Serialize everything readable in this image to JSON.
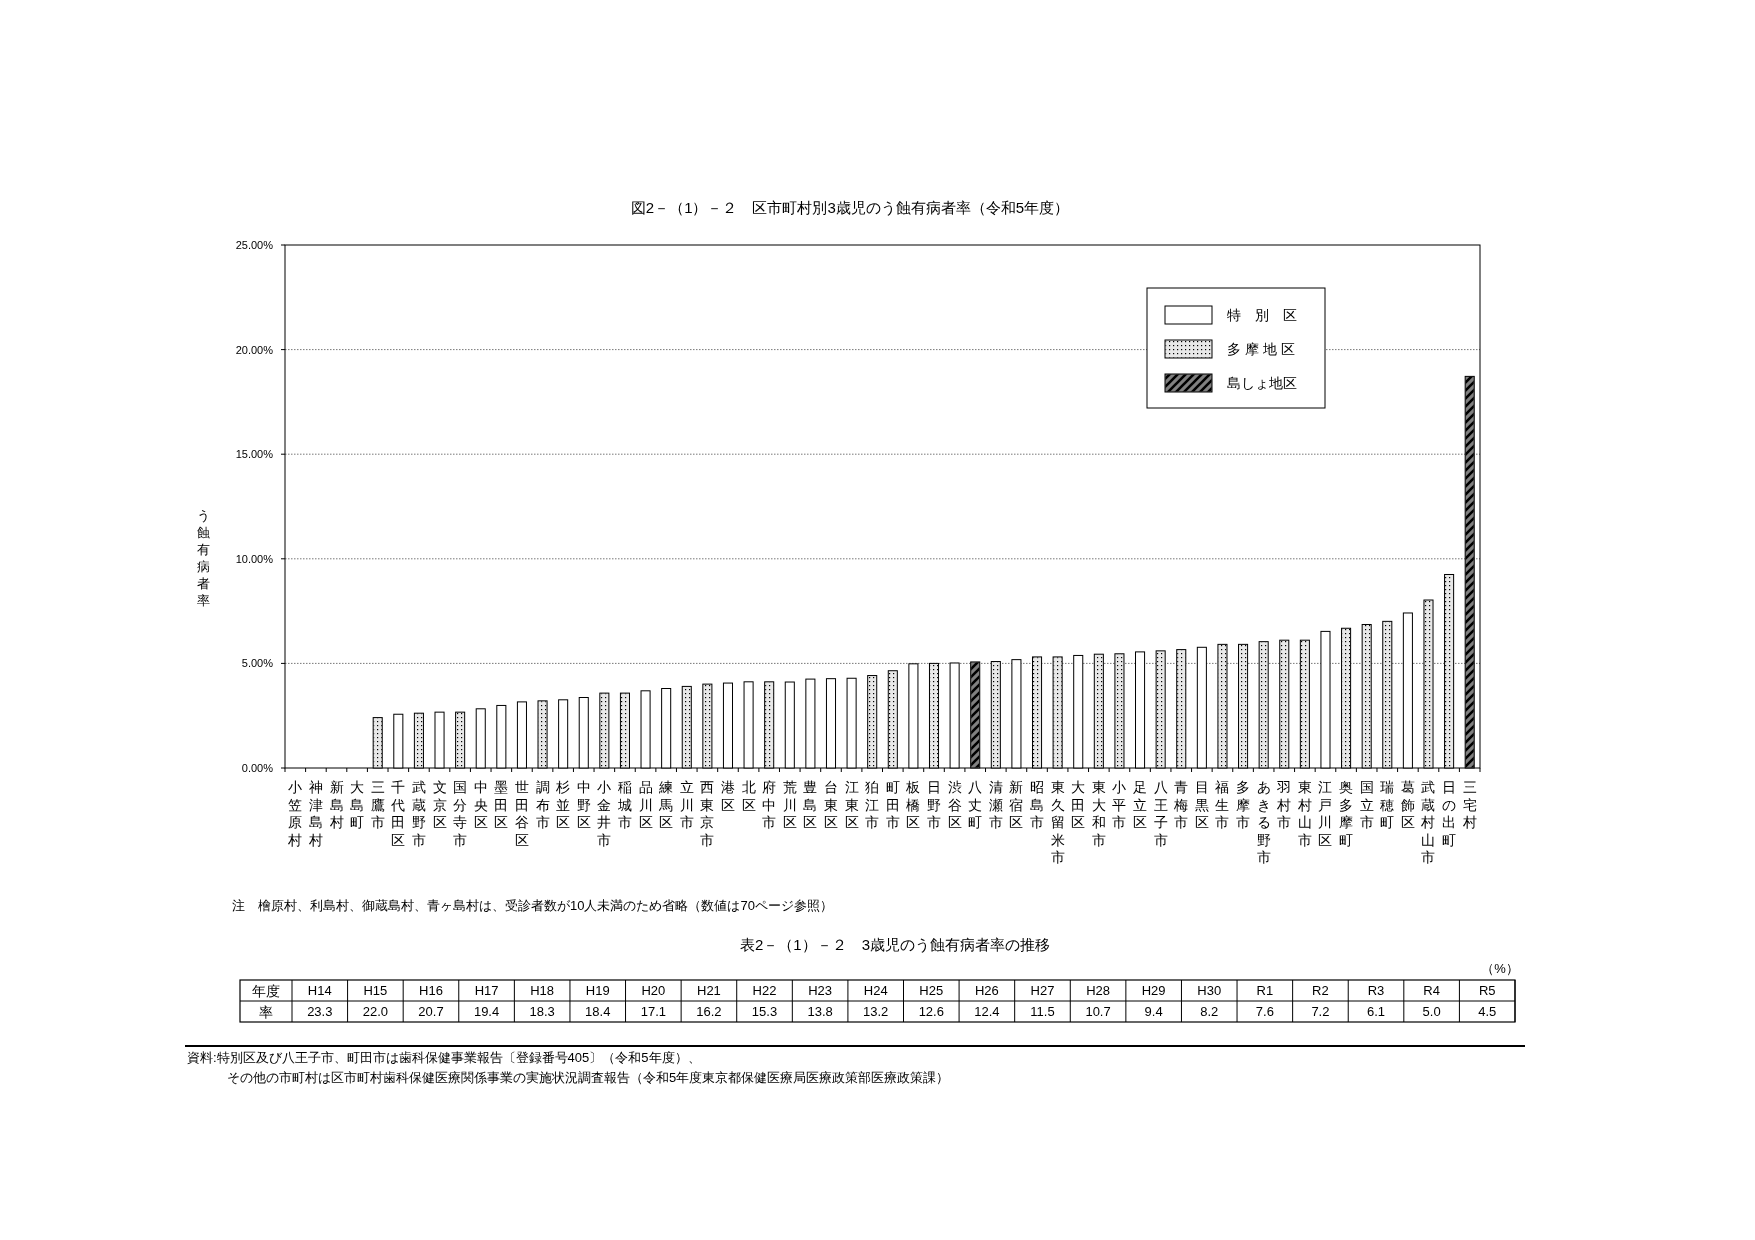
{
  "chart_data": [
    {
      "type": "bar",
      "stacked": true,
      "title": "図2－（1）－２　区市町村別3歳児のう蝕有病者率（令和5年度）",
      "ylabel": "う蝕有病者率",
      "categories": [
        "小笠原村",
        "神津島村",
        "新島村",
        "大島町",
        "三鷹市",
        "千代田区",
        "武蔵野市",
        "文京区",
        "国分寺市",
        "中央区",
        "墨田区",
        "世田谷区",
        "調布市",
        "杉並区",
        "中野区",
        "小金井市",
        "稲城市",
        "品川区",
        "練馬区",
        "立川市",
        "西東京市",
        "港区",
        "北区",
        "府中市",
        "荒川区",
        "豊島区",
        "台東区",
        "江東区",
        "狛江市",
        "町田市",
        "板橋区",
        "日野市",
        "渋谷区",
        "八丈町",
        "清瀬市",
        "新宿区",
        "昭島市",
        "東久留米市",
        "大田区",
        "東大和市",
        "小平市",
        "足立区",
        "八王子市",
        "青梅市",
        "目黒区",
        "福生市",
        "多摩市",
        "あきる野市",
        "羽村市",
        "東村山市",
        "江戸川区",
        "奥多摩町",
        "国立市",
        "瑞穂町",
        "葛飾区",
        "武蔵村山市",
        "日の出町",
        "三宅村"
      ],
      "series": [
        {
          "name": "特　別　区",
          "color": "#ffffff",
          "values": [
            null,
            null,
            null,
            null,
            null,
            2.57,
            null,
            2.67,
            null,
            2.83,
            2.99,
            3.16,
            null,
            3.26,
            3.37,
            null,
            null,
            3.69,
            3.8,
            null,
            null,
            4.06,
            4.12,
            null,
            4.11,
            4.25,
            4.27,
            4.29,
            null,
            null,
            4.98,
            null,
            5.02,
            null,
            null,
            5.18,
            null,
            null,
            5.38,
            null,
            null,
            5.55,
            null,
            null,
            5.77,
            null,
            null,
            null,
            null,
            null,
            6.53,
            null,
            null,
            null,
            7.41,
            null,
            null,
            null
          ]
        },
        {
          "name": "多 摩 地 区",
          "color": "#e8e8e8",
          "values": [
            null,
            null,
            null,
            null,
            2.41,
            null,
            2.62,
            null,
            2.67,
            null,
            null,
            null,
            3.21,
            null,
            null,
            3.58,
            3.58,
            null,
            null,
            3.9,
            4.01,
            null,
            null,
            4.12,
            null,
            null,
            null,
            null,
            4.42,
            4.65,
            null,
            5.0,
            null,
            null,
            5.09,
            null,
            5.31,
            5.31,
            null,
            5.44,
            5.46,
            null,
            5.6,
            5.66,
            null,
            5.91,
            5.91,
            6.04,
            6.11,
            6.11,
            null,
            6.68,
            6.86,
            7.01,
            null,
            8.03,
            9.25,
            null
          ]
        },
        {
          "name": "島しょ地区",
          "color": "#808080",
          "values": [
            0,
            0,
            0,
            0,
            null,
            null,
            null,
            null,
            null,
            null,
            null,
            null,
            null,
            null,
            null,
            null,
            null,
            null,
            null,
            null,
            null,
            null,
            null,
            null,
            null,
            null,
            null,
            null,
            null,
            null,
            null,
            null,
            null,
            5.07,
            null,
            null,
            null,
            null,
            null,
            null,
            null,
            null,
            null,
            null,
            null,
            null,
            null,
            null,
            null,
            null,
            null,
            null,
            null,
            null,
            null,
            null,
            null,
            18.72
          ]
        }
      ],
      "ylim": [
        0,
        25
      ],
      "yticks": [
        {
          "value": 0,
          "label": "0.00%"
        },
        {
          "value": 5,
          "label": "5.00%"
        },
        {
          "value": 10,
          "label": "10.00%"
        },
        {
          "value": 15,
          "label": "15.00%"
        },
        {
          "value": 20,
          "label": "20.00%"
        },
        {
          "value": 25,
          "label": "25.00%"
        }
      ],
      "grid": "y",
      "legend": "top right",
      "annotations": [
        "注　檜原村、利島村、御蔵島村、青ヶ島村は、受診者数が10人未満のため省略（数値は70ページ参照）"
      ]
    },
    {
      "type": "other",
      "title": "表2－（1）－２　3歳児のう蝕有病者率の推移",
      "subtitle": "（%）",
      "xlabel": "年度",
      "ylabel": "率",
      "data_labels": true,
      "categories": [
        "H14",
        "H15",
        "H16",
        "H17",
        "H18",
        "H19",
        "H20",
        "H21",
        "H22",
        "H23",
        "H24",
        "H25",
        "H26",
        "H27",
        "H28",
        "H29",
        "H30",
        "R1",
        "R2",
        "R3",
        "R4",
        "R5"
      ],
      "value_labels": [
        "23.3",
        "22.0",
        "20.7",
        "19.4",
        "18.3",
        "18.4",
        "17.1",
        "16.2",
        "15.3",
        "13.8",
        "13.2",
        "12.6",
        "12.4",
        "11.5",
        "10.7",
        "9.4",
        "8.2",
        "7.6",
        "7.2",
        "6.1",
        "5.0",
        "4.5"
      ],
      "values": [
        23.3,
        22.0,
        20.7,
        19.4,
        18.3,
        18.4,
        17.1,
        16.2,
        15.3,
        13.8,
        13.2,
        12.6,
        12.4,
        11.5,
        10.7,
        9.4,
        8.2,
        7.6,
        7.2,
        6.1,
        5.0,
        4.5
      ],
      "annotations": [
        "資料:特別区及び八王子市、町田市は歯科保健事業報告〔登録番号405〕（令和5年度）、",
        "その他の市町村は区市町村歯科保健医療関係事業の実施状況調査報告（令和5年度東京都保健医療局医療政策部医療政策課）"
      ]
    }
  ]
}
